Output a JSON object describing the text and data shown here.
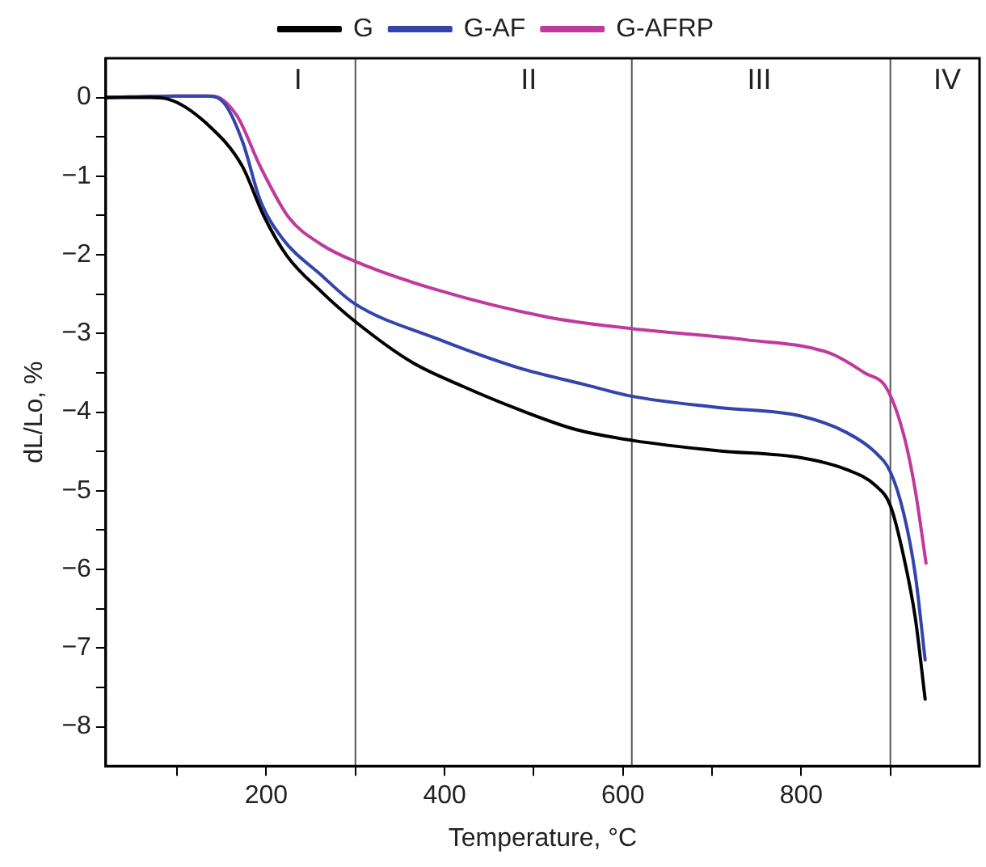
{
  "chart_data": {
    "type": "line",
    "xlabel": "Temperature, °C",
    "ylabel": "dL/Lo, %",
    "xlim": [
      20,
      1000
    ],
    "ylim": [
      -8.5,
      0.5
    ],
    "xticks": [
      {
        "value": 100,
        "label": null
      },
      200,
      {
        "value": 300,
        "label": null
      },
      400,
      {
        "value": 500,
        "label": null
      },
      600,
      {
        "value": 700,
        "label": null
      },
      800,
      {
        "value": 900,
        "label": null
      }
    ],
    "yticks": [
      {
        "value": -8,
        "label": "−8"
      },
      {
        "value": -7.5,
        "label": null
      },
      {
        "value": -7,
        "label": "−7"
      },
      {
        "value": -6.5,
        "label": null
      },
      {
        "value": -6,
        "label": "−6"
      },
      {
        "value": -5.5,
        "label": null
      },
      {
        "value": -5,
        "label": "−5"
      },
      {
        "value": -4.5,
        "label": null
      },
      {
        "value": -4,
        "label": "−4"
      },
      {
        "value": -3.5,
        "label": null
      },
      {
        "value": -3,
        "label": "−3"
      },
      {
        "value": -2.5,
        "label": null
      },
      {
        "value": -2,
        "label": "−2"
      },
      {
        "value": -1.5,
        "label": null
      },
      {
        "value": -1,
        "label": "−1"
      },
      {
        "value": -0.5,
        "label": null
      },
      0
    ],
    "grid": false,
    "legend": "top",
    "marker": "none",
    "line_style": "solid",
    "series": [
      {
        "name": "G",
        "color": "#000000",
        "x": [
          20,
          70,
          90,
          135,
          173,
          197,
          223,
          261,
          300,
          364,
          420,
          484,
          547,
          611,
          706,
          800,
          851,
          883,
          900,
          915,
          928,
          939
        ],
        "values": [
          0,
          0,
          -0.02,
          -0.35,
          -0.87,
          -1.5,
          -2.01,
          -2.46,
          -2.85,
          -3.37,
          -3.67,
          -3.97,
          -4.22,
          -4.36,
          -4.49,
          -4.58,
          -4.73,
          -4.93,
          -5.19,
          -5.84,
          -6.62,
          -7.65
        ]
      },
      {
        "name": "G-AF",
        "color": "#3344aa",
        "x": [
          20,
          100,
          135,
          154,
          174,
          193,
          218,
          262,
          299,
          390,
          484,
          554,
          611,
          706,
          800,
          851,
          883,
          900,
          915,
          928,
          939
        ],
        "values": [
          0,
          0.02,
          0.02,
          -0.09,
          -0.58,
          -1.3,
          -1.79,
          -2.26,
          -2.62,
          -3.06,
          -3.44,
          -3.64,
          -3.8,
          -3.94,
          -4.05,
          -4.26,
          -4.51,
          -4.76,
          -5.29,
          -6.07,
          -7.15
        ]
      },
      {
        "name": "G-AFRP",
        "color": "#c0399c",
        "x": [
          20,
          100,
          140,
          167,
          193,
          225,
          262,
          299,
          390,
          515,
          611,
          738,
          832,
          871,
          896,
          915,
          928,
          940
        ],
        "values": [
          0,
          0.02,
          0.02,
          -0.23,
          -0.87,
          -1.52,
          -1.87,
          -2.08,
          -2.44,
          -2.79,
          -2.94,
          -3.08,
          -3.25,
          -3.5,
          -3.7,
          -4.29,
          -5.0,
          -5.92
        ]
      }
    ],
    "ref_lines": [
      {
        "axis": "x",
        "value": 300,
        "color": "#555555"
      },
      {
        "axis": "x",
        "value": 610,
        "color": "#555555"
      },
      {
        "axis": "x",
        "value": 900,
        "color": "#555555"
      }
    ],
    "annotations": [
      "I",
      "II",
      "III",
      "IV"
    ]
  }
}
